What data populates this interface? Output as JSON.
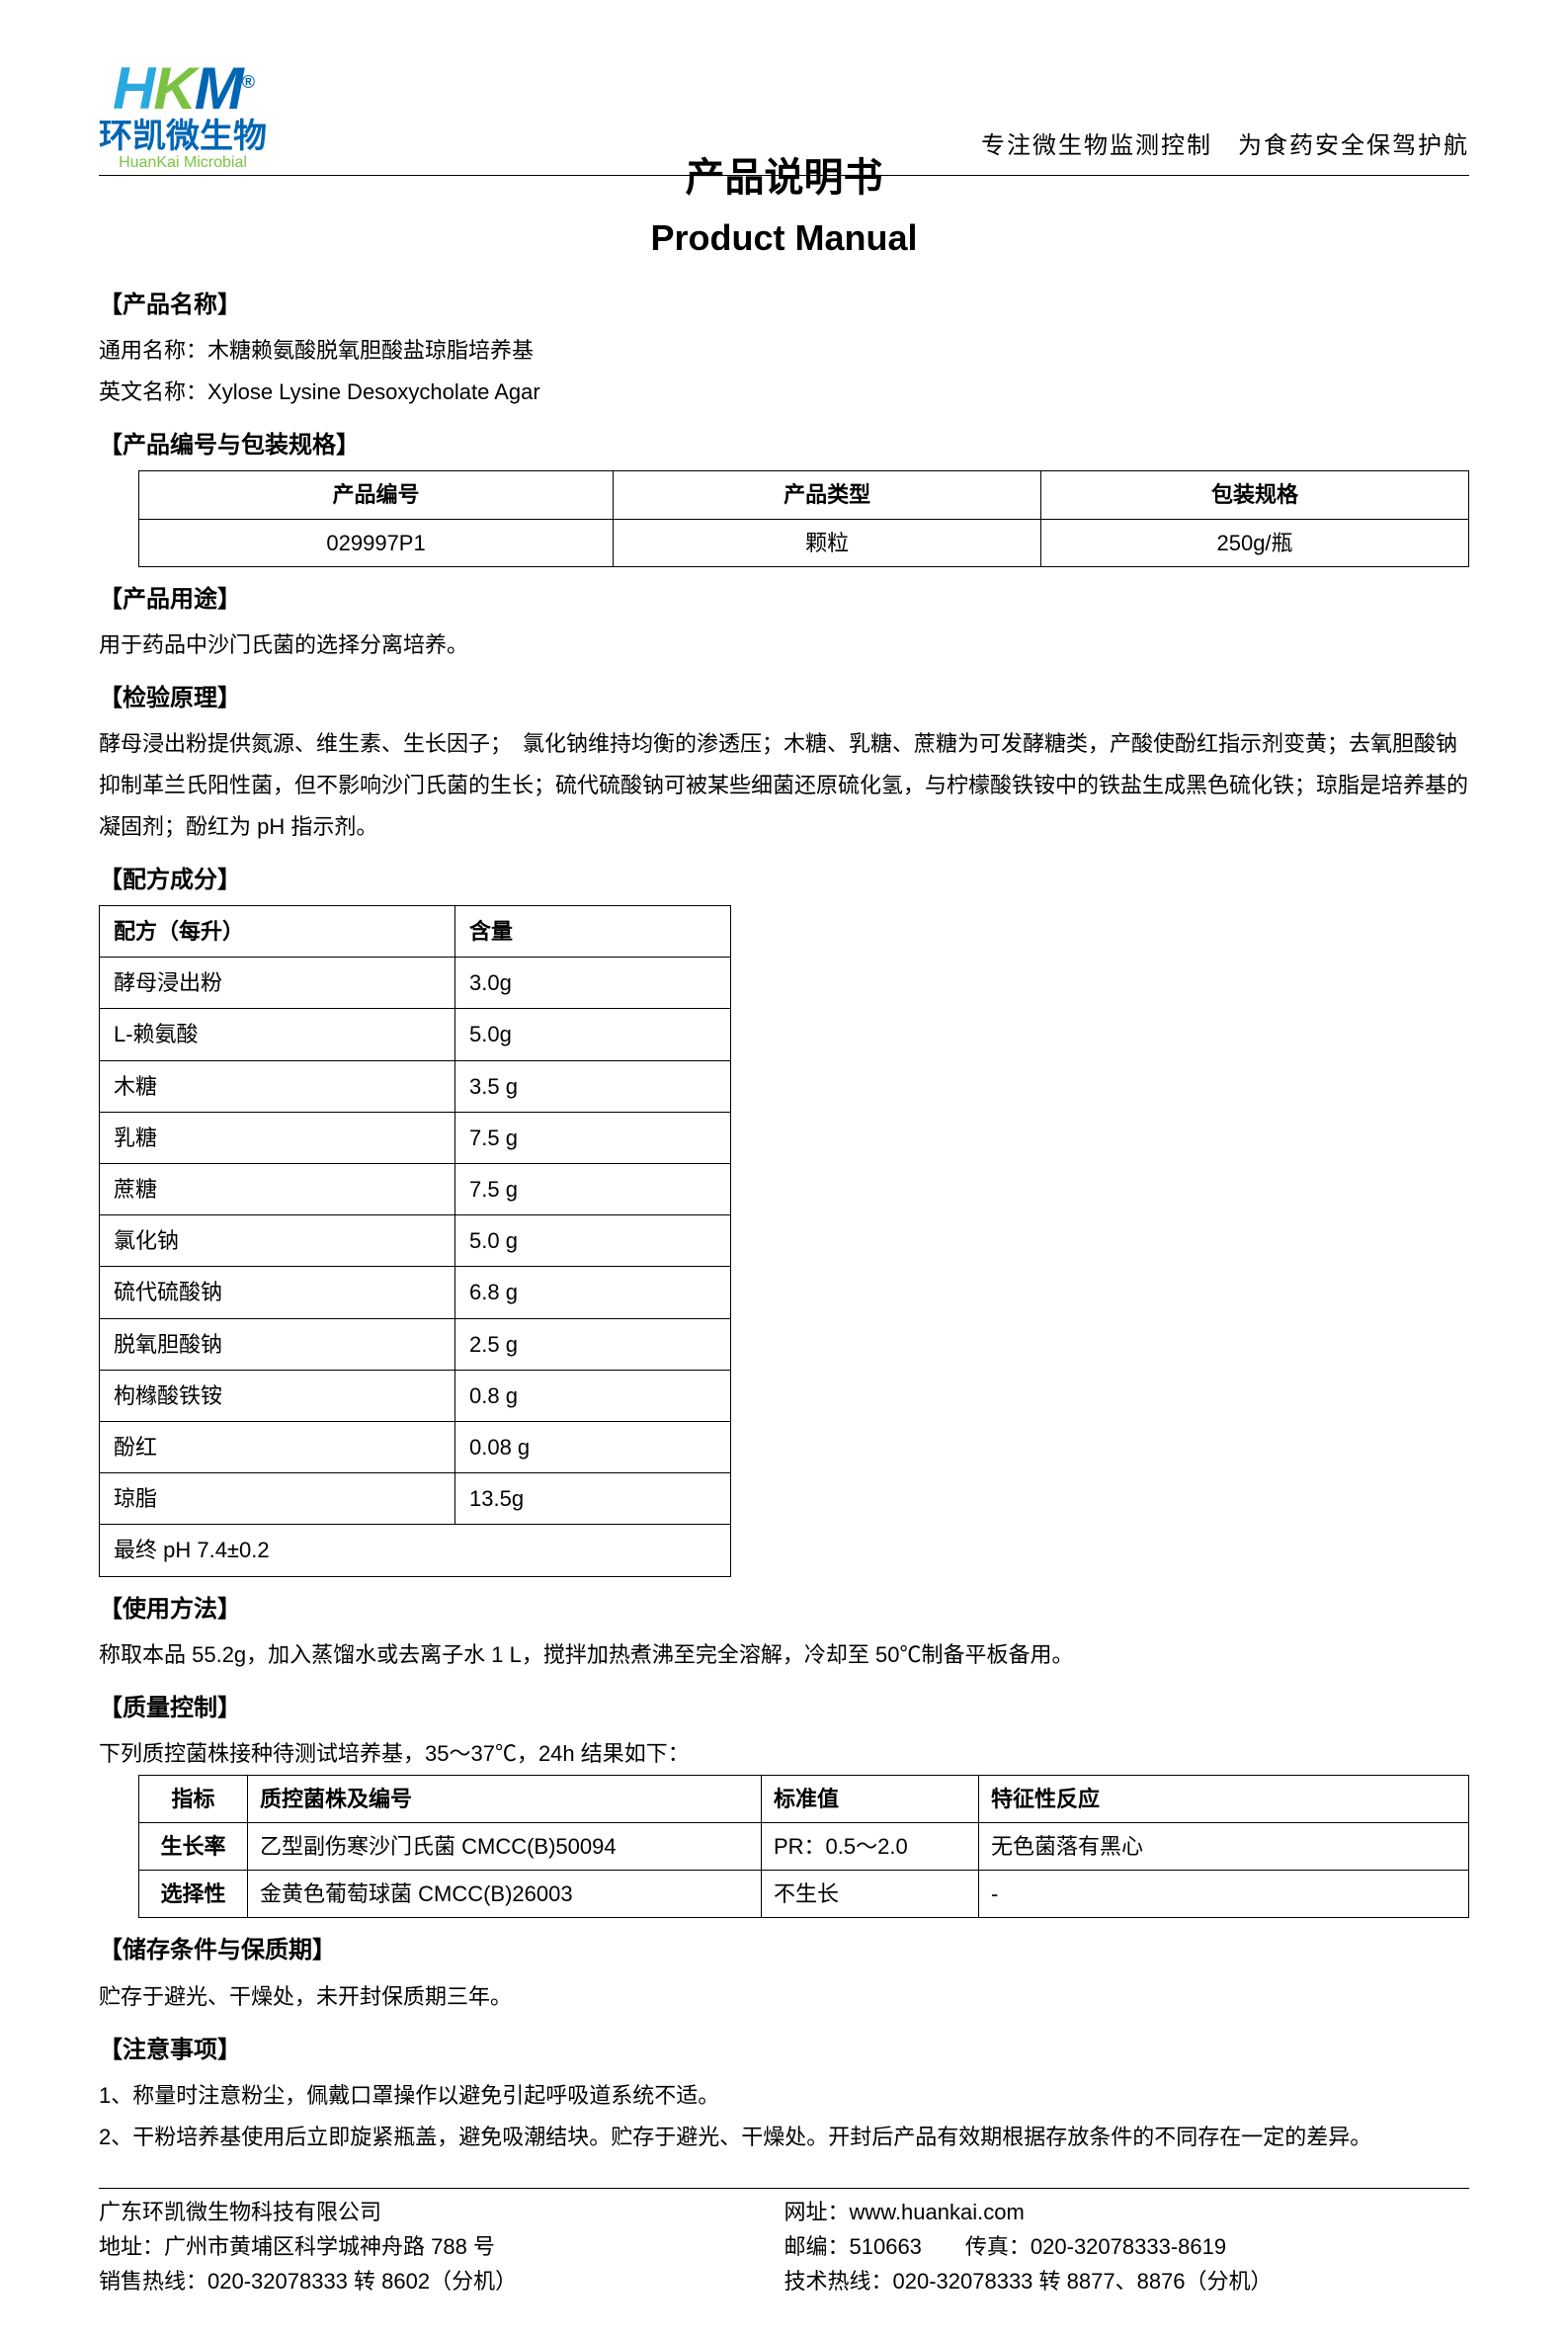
{
  "header": {
    "logo_letters": "HKM",
    "logo_reg": "®",
    "logo_cn": "环凯微生物",
    "logo_en": "HuanKai Microbial",
    "tagline": "专注微生物监测控制　为食药安全保驾护航"
  },
  "title": {
    "cn": "产品说明书",
    "en": "Product Manual"
  },
  "sections": {
    "name_head": "【产品名称】",
    "generic_name_label": "通用名称：",
    "generic_name": "木糖赖氨酸脱氧胆酸盐琼脂培养基",
    "english_name_label": "英文名称：",
    "english_name": "Xylose Lysine Desoxycholate Agar",
    "code_head": "【产品编号与包装规格】",
    "code_table": {
      "headers": [
        "产品编号",
        "产品类型",
        "包装规格"
      ],
      "rows": [
        [
          "029997P1",
          "颗粒",
          "250g/瓶"
        ]
      ]
    },
    "usage_head": "【产品用途】",
    "usage_text": "用于药品中沙门氏菌的选择分离培养。",
    "principle_head": "【检验原理】",
    "principle_text": "酵母浸出粉提供氮源、维生素、生长因子；　氯化钠维持均衡的渗透压；木糖、乳糖、蔗糖为可发酵糖类，产酸使酚红指示剂变黄；去氧胆酸钠抑制革兰氏阳性菌，但不影响沙门氏菌的生长；硫代硫酸钠可被某些细菌还原硫化氢，与柠檬酸铁铵中的铁盐生成黑色硫化铁；琼脂是培养基的凝固剂；酚红为 pH 指示剂。",
    "formula_head": "【配方成分】",
    "formula_table": {
      "headers": [
        "配方（每升）",
        "含量"
      ],
      "rows": [
        [
          "酵母浸出粉",
          "3.0g"
        ],
        [
          "L-赖氨酸",
          "5.0g"
        ],
        [
          "木糖",
          "3.5 g"
        ],
        [
          "乳糖",
          "7.5 g"
        ],
        [
          "蔗糖",
          "7.5 g"
        ],
        [
          "氯化钠",
          "5.0 g"
        ],
        [
          "硫代硫酸钠",
          "6.8 g"
        ],
        [
          "脱氧胆酸钠",
          "2.5 g"
        ],
        [
          "枸橼酸铁铵",
          "0.8 g"
        ],
        [
          "酚红",
          "0.08 g"
        ],
        [
          "琼脂",
          "13.5g"
        ]
      ],
      "footer_row": "最终 pH 7.4±0.2"
    },
    "method_head": "【使用方法】",
    "method_text": "称取本品 55.2g，加入蒸馏水或去离子水 1 L，搅拌加热煮沸至完全溶解，冷却至 50℃制备平板备用。",
    "qc_head": "【质量控制】",
    "qc_intro": "下列质控菌株接种待测试培养基，35～37℃，24h 结果如下：",
    "qc_table": {
      "headers": [
        "指标",
        "质控菌株及编号",
        "标准值",
        "特征性反应"
      ],
      "rows": [
        [
          "生长率",
          "乙型副伤寒沙门氏菌 CMCC(B)50094",
          "PR：0.5～2.0",
          "无色菌落有黑心"
        ],
        [
          "选择性",
          "金黄色葡萄球菌 CMCC(B)26003",
          "不生长",
          "-"
        ]
      ]
    },
    "storage_head": "【储存条件与保质期】",
    "storage_text": "贮存于避光、干燥处，未开封保质期三年。",
    "caution_head": "【注意事项】",
    "caution_1": "1、称量时注意粉尘，佩戴口罩操作以避免引起呼吸道系统不适。",
    "caution_2": "2、干粉培养基使用后立即旋紧瓶盖，避免吸潮结块。贮存于避光、干燥处。开封后产品有效期根据存放条件的不同存在一定的差异。"
  },
  "footer": {
    "company": "广东环凯微生物科技有限公司",
    "address": "地址：广州市黄埔区科学城神舟路 788 号",
    "sales": "销售热线：020-32078333 转 8602（分机）",
    "website": "网址：www.huankai.com",
    "postfax": "邮编：510663　　传真：020-32078333-8619",
    "tech": "技术热线：020-32078333 转 8877、8876（分机）"
  }
}
